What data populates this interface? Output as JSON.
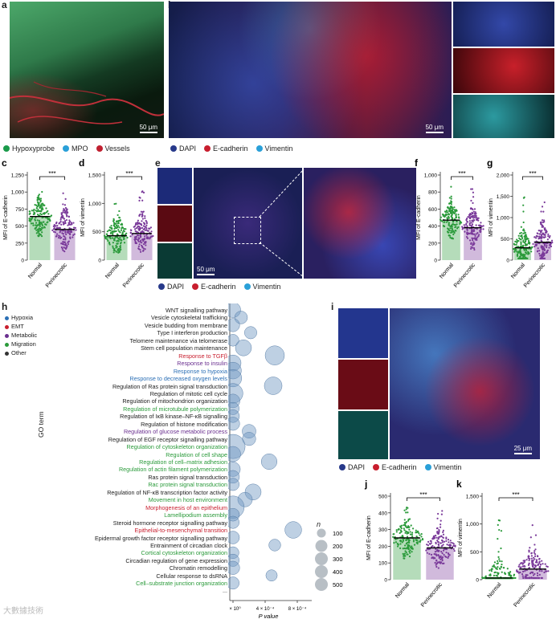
{
  "panels": {
    "a": {
      "letter": "a",
      "scale": "50 μm",
      "legend": [
        {
          "label": "Hypoxyprobe",
          "color": "#1a9a4a"
        },
        {
          "label": "MPO",
          "color": "#2aa0d8"
        },
        {
          "label": "Vessels",
          "color": "#c02030"
        }
      ]
    },
    "b": {
      "letter": "b",
      "scale": "50 μm",
      "legend": [
        {
          "label": "DAPI",
          "color": "#27398a"
        },
        {
          "label": "E-cadherin",
          "color": "#c81e2e"
        },
        {
          "label": "Vimentin",
          "color": "#2aa0d8"
        }
      ]
    },
    "e": {
      "letter": "e",
      "scale": "50 μm",
      "legend": [
        {
          "label": "DAPI",
          "color": "#27398a"
        },
        {
          "label": "E-cadherin",
          "color": "#c81e2e"
        },
        {
          "label": "Vimentin",
          "color": "#2aa0d8"
        }
      ]
    },
    "i": {
      "letter": "i",
      "scale": "25 μm",
      "legend": [
        {
          "label": "DAPI",
          "color": "#27398a"
        },
        {
          "label": "E-cadherin",
          "color": "#c81e2e"
        },
        {
          "label": "Vimentin",
          "color": "#2aa0d8"
        }
      ]
    },
    "h": {
      "letter": "h",
      "ylabel": "GO term",
      "xlabel": "P value",
      "category_legend": [
        {
          "label": "Hypoxia",
          "color": "#2b6fb5"
        },
        {
          "label": "EMT",
          "color": "#c81e2e"
        },
        {
          "label": "Metabolic",
          "color": "#6a2f8f"
        },
        {
          "label": "Migration",
          "color": "#2a9a3a"
        },
        {
          "label": "Other",
          "color": "#333333"
        }
      ],
      "size_legend": {
        "title": "n",
        "values": [
          "100",
          "200",
          "300",
          "400",
          "500"
        ]
      }
    }
  },
  "chart_data": [
    {
      "id": "c",
      "letter": "c",
      "type": "scatter",
      "ylabel": "MFI of E-cadherin",
      "categories": [
        "Normal",
        "Perinecrotic"
      ],
      "yticks": [
        "0",
        "250",
        "500",
        "750",
        "1,000",
        "1,250"
      ],
      "ylim": [
        0,
        1250
      ],
      "median": [
        640,
        450
      ],
      "significance": "***",
      "colors": [
        "#2a9a3a",
        "#7a3a9a"
      ]
    },
    {
      "id": "d",
      "letter": "d",
      "type": "scatter",
      "ylabel": "MFI of vimentin",
      "categories": [
        "Normal",
        "Perinecrotic"
      ],
      "yticks": [
        "0",
        "500",
        "1,000",
        "1,500"
      ],
      "ylim": [
        0,
        1500
      ],
      "median": [
        430,
        470
      ],
      "significance": "***",
      "colors": [
        "#2a9a3a",
        "#7a3a9a"
      ]
    },
    {
      "id": "f",
      "letter": "f",
      "type": "scatter",
      "ylabel": "MFI of E-cadherin",
      "categories": [
        "Normal",
        "Perinecrotic"
      ],
      "yticks": [
        "0",
        "200",
        "400",
        "600",
        "800",
        "1,000"
      ],
      "ylim": [
        0,
        1000
      ],
      "median": [
        470,
        380
      ],
      "significance": "***",
      "colors": [
        "#2a9a3a",
        "#7a3a9a"
      ]
    },
    {
      "id": "g",
      "letter": "g",
      "type": "scatter",
      "ylabel": "MFI of vimentin",
      "categories": [
        "Normal",
        "Perinecrotic"
      ],
      "yticks": [
        "0",
        "500",
        "1,000",
        "1,500",
        "2,000"
      ],
      "ylim": [
        0,
        2000
      ],
      "median": [
        290,
        420
      ],
      "significance": "***",
      "colors": [
        "#2a9a3a",
        "#7a3a9a"
      ]
    },
    {
      "id": "j",
      "letter": "j",
      "type": "scatter",
      "ylabel": "MFI of E-cadherin",
      "categories": [
        "Normal",
        "Perinecrotic"
      ],
      "yticks": [
        "0",
        "100",
        "200",
        "300",
        "400",
        "500"
      ],
      "ylim": [
        0,
        500
      ],
      "median": [
        250,
        190
      ],
      "significance": "***",
      "colors": [
        "#2a9a3a",
        "#7a3a9a"
      ]
    },
    {
      "id": "k",
      "letter": "k",
      "type": "scatter",
      "ylabel": "MFI of vimentin",
      "categories": [
        "Normal",
        "Perinecrotic"
      ],
      "yticks": [
        "0",
        "500",
        "1,000",
        "1,500"
      ],
      "ylim": [
        0,
        1500
      ],
      "median": [
        30,
        190
      ],
      "significance": "***",
      "colors": [
        "#2a9a3a",
        "#7a3a9a"
      ]
    },
    {
      "id": "h",
      "letter": "h",
      "type": "scatter",
      "xlabel": "P value",
      "ylabel": "GO term",
      "xticks": [
        "0 × 10⁰",
        "4 × 10⁻⁴",
        "8 × 10⁻⁴"
      ],
      "xlim": [
        0,
        0.0009
      ],
      "terms": [
        {
          "label": "WNT signalling pathway",
          "cat": "Other",
          "p": 0.0,
          "n": 180
        },
        {
          "label": "Vesicle cytoskeletal trafficking",
          "cat": "Other",
          "p": 0.0001,
          "n": 120
        },
        {
          "label": "Vesicle budding from membrane",
          "cat": "Other",
          "p": 0.0,
          "n": 130
        },
        {
          "label": "Type I interferon production",
          "cat": "Other",
          "p": 0.00022,
          "n": 110
        },
        {
          "label": "Telomere maintenance via telomerase",
          "cat": "Other",
          "p": 0.0,
          "n": 100
        },
        {
          "label": "Stem cell population maintenance",
          "cat": "Other",
          "p": 0.00013,
          "n": 200
        },
        {
          "label": "Response to TGFβ",
          "cat": "EMT",
          "p": 0.00052,
          "n": 300
        },
        {
          "label": "Response to insulin",
          "cat": "Metabolic",
          "p": 0.0,
          "n": 200
        },
        {
          "label": "Response to hypoxia",
          "cat": "Hypoxia",
          "p": 0.0,
          "n": 220
        },
        {
          "label": "Response to decreased oxygen levels",
          "cat": "Hypoxia",
          "p": 0.0,
          "n": 240
        },
        {
          "label": "Regulation of Ras protein signal transduction",
          "cat": "Other",
          "p": 0.0005,
          "n": 250
        },
        {
          "label": "Regulation of mitotic cell cycle",
          "cat": "Other",
          "p": 0.0,
          "n": 320
        },
        {
          "label": "Regulation of mitochondrion organization",
          "cat": "Other",
          "p": 0.0,
          "n": 140
        },
        {
          "label": "Regulation of microtubule polymerization",
          "cat": "Migration",
          "p": 0.0,
          "n": 110
        },
        {
          "label": "Regulation of IκB kinase–NF-κB signalling",
          "cat": "Other",
          "p": 0.0,
          "n": 120
        },
        {
          "label": "Regulation of histone modification",
          "cat": "Other",
          "p": 0.0,
          "n": 130
        },
        {
          "label": "Regulation of glucose metabolic process",
          "cat": "Metabolic",
          "p": 0.0002,
          "n": 140
        },
        {
          "label": "Regulation of EGF receptor signalling pathway",
          "cat": "Other",
          "p": 0.0002,
          "n": 130
        },
        {
          "label": "Regulation of cytoskeleton organization",
          "cat": "Migration",
          "p": 0.0,
          "n": 500
        },
        {
          "label": "Regulation of cell shape",
          "cat": "Migration",
          "p": 0.0,
          "n": 180
        },
        {
          "label": "Regulation of cell–matrix adhesion",
          "cat": "Migration",
          "p": 0.00045,
          "n": 190
        },
        {
          "label": "Regulation of actin filament polymerization",
          "cat": "Migration",
          "p": 0.0,
          "n": 160
        },
        {
          "label": "Ras protein signal transduction",
          "cat": "Other",
          "p": 0.0,
          "n": 120
        },
        {
          "label": "Rac protein signal transduction",
          "cat": "Migration",
          "p": 0.0,
          "n": 110
        },
        {
          "label": "Regulation of NF-κB transcription factor activity",
          "cat": "Other",
          "p": 0.00025,
          "n": 200
        },
        {
          "label": "Movement in host environment",
          "cat": "Migration",
          "p": 0.00015,
          "n": 160
        },
        {
          "label": "Morphogenesis of an epithelium",
          "cat": "EMT",
          "p": 0.0,
          "n": 420
        },
        {
          "label": "Lamellipodium assembly",
          "cat": "Migration",
          "p": 0.0,
          "n": 120
        },
        {
          "label": "Steroid hormone receptor signalling pathway",
          "cat": "Other",
          "p": 0.0,
          "n": 110
        },
        {
          "label": "Epithelial-to-mesenchymal transition",
          "cat": "EMT",
          "p": 0.00075,
          "n": 220
        },
        {
          "label": "Epidermal growth factor receptor signalling pathway",
          "cat": "Other",
          "p": 0.0,
          "n": 120
        },
        {
          "label": "Entrainment of circadian clock",
          "cat": "Other",
          "p": 0.00052,
          "n": 100
        },
        {
          "label": "Cortical cytoskeleton organization",
          "cat": "Migration",
          "p": 0.0,
          "n": 100
        },
        {
          "label": "Circadian regulation of gene expression",
          "cat": "Other",
          "p": 0.0,
          "n": 110
        },
        {
          "label": "Chromatin remodelling",
          "cat": "Other",
          "p": 0.0,
          "n": 130
        },
        {
          "label": "Cellular response to dsRNA",
          "cat": "Other",
          "p": 0.00048,
          "n": 90
        },
        {
          "label": "Cell–substrate junction organization",
          "cat": "Migration",
          "p": 0.0,
          "n": 110
        }
      ],
      "more": "..."
    }
  ],
  "watermark": "大數據技術"
}
